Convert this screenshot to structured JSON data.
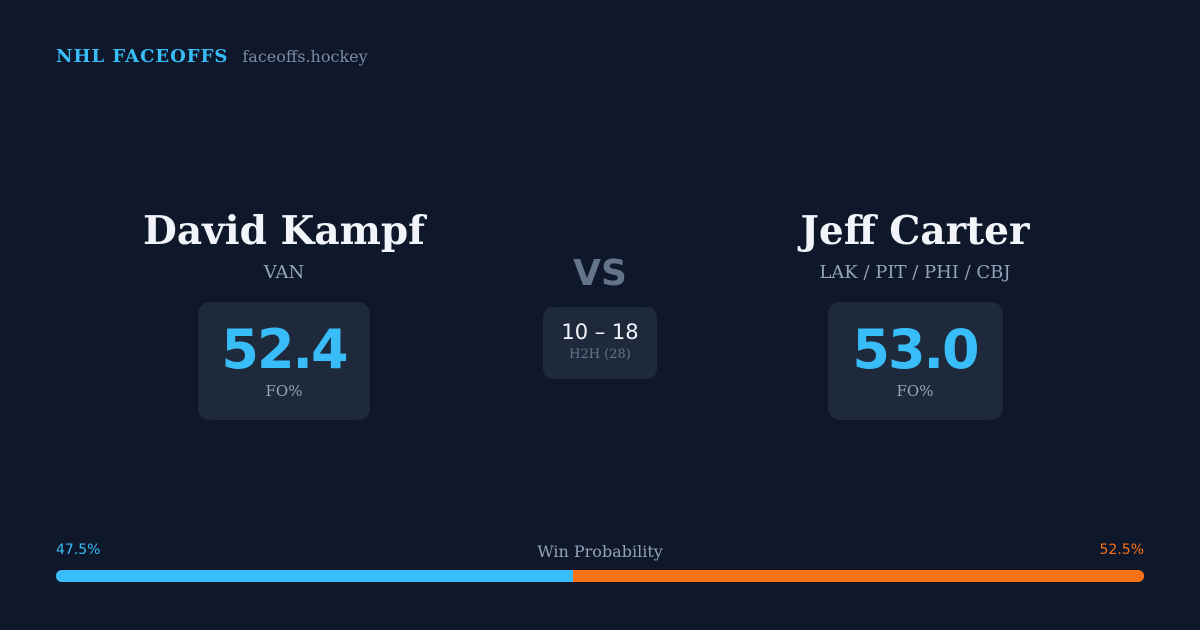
{
  "brand": {
    "name": "NHL FACEOFFS",
    "site": "faceoffs.hockey",
    "accent_color": "#38bdf8"
  },
  "player_left": {
    "name": "David Kampf",
    "team": "VAN",
    "fo_pct": "52.4",
    "fo_label": "FO%",
    "color": "#38bdf8"
  },
  "versus": {
    "label": "VS",
    "h2h_score": "10 – 18",
    "h2h_label": "H2H (28)"
  },
  "player_right": {
    "name": "Jeff Carter",
    "team": "LAK / PIT / PHI / CBJ",
    "fo_pct": "53.0",
    "fo_label": "FO%",
    "color": "#38bdf8"
  },
  "win_probability": {
    "title": "Win Probability",
    "left_label": "47.5%",
    "right_label": "52.5%",
    "left_value": 47.5,
    "right_value": 52.5,
    "left_color": "#38bdf8",
    "right_color": "#f97316"
  }
}
